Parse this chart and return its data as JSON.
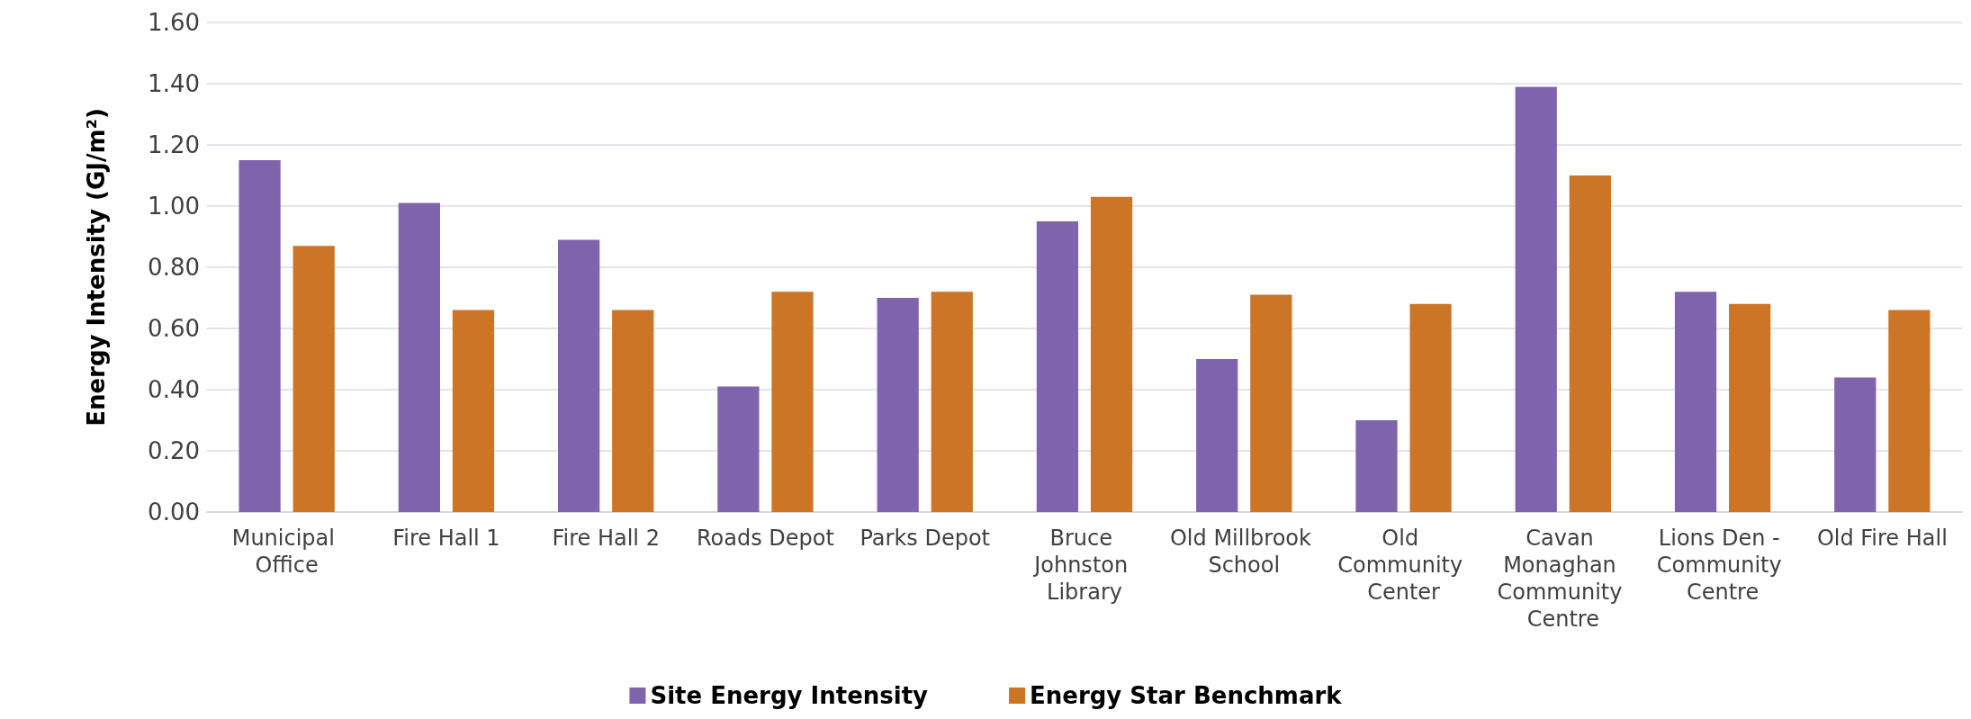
{
  "chart_data": {
    "type": "bar",
    "ylabel": "Energy Intensity (GJ/m²)",
    "categories": [
      "Municipal Office",
      "Fire Hall 1",
      "Fire Hall 2",
      "Roads Depot",
      "Parks Depot",
      "Bruce Johnston Library",
      "Old Millbrook School",
      "Old Community Center",
      "Cavan Monaghan Community Centre",
      "Lions Den - Community Centre",
      "Old Fire Hall"
    ],
    "series": [
      {
        "name": "Site Energy Intensity",
        "color": "#7e64ad",
        "values": [
          1.15,
          1.01,
          0.89,
          0.41,
          0.7,
          0.95,
          0.5,
          0.3,
          1.39,
          0.72,
          0.44
        ]
      },
      {
        "name": "Energy Star Benchmark",
        "color": "#cd7527",
        "values": [
          0.87,
          0.66,
          0.66,
          0.72,
          0.72,
          1.03,
          0.71,
          0.68,
          1.1,
          0.68,
          0.66
        ]
      }
    ],
    "ylim": [
      0,
      1.6
    ],
    "yticks": [
      {
        "value": 0,
        "label": "0.00"
      },
      {
        "value": 0.2,
        "label": "0.20"
      },
      {
        "value": 0.4,
        "label": "0.40"
      },
      {
        "value": 0.6,
        "label": "0.60"
      },
      {
        "value": 0.8,
        "label": "0.80"
      },
      {
        "value": 1.0,
        "label": "1.00"
      },
      {
        "value": 1.2,
        "label": "1.20"
      },
      {
        "value": 1.4,
        "label": "1.40"
      },
      {
        "value": 1.6,
        "label": "1.60"
      }
    ],
    "grid": "y",
    "legend": "bottom"
  }
}
